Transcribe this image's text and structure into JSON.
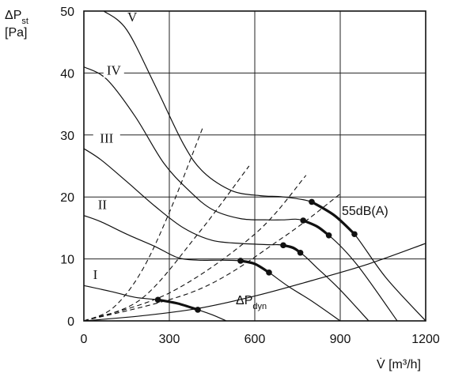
{
  "chart_data": {
    "type": "line",
    "y_axis_title": {
      "symbol": "ΔP",
      "subscript": "st",
      "unit": "[Pa]"
    },
    "x_axis_title": {
      "symbol": "V̇",
      "unit": "[m³/h]"
    },
    "xlim": [
      0,
      1200
    ],
    "ylim": [
      0,
      50
    ],
    "x_ticks": [
      "0",
      "300",
      "600",
      "900",
      "1200"
    ],
    "y_ticks": [
      "0",
      "10",
      "20",
      "30",
      "40",
      "50"
    ],
    "grid": true,
    "fan_curves": [
      {
        "name": "I",
        "points": [
          [
            0,
            5.7
          ],
          [
            100,
            4.7
          ],
          [
            180,
            3.8
          ],
          [
            260,
            3.4
          ],
          [
            330,
            2.8
          ],
          [
            400,
            1.8
          ],
          [
            450,
            1.0
          ],
          [
            500,
            0
          ]
        ]
      },
      {
        "name": "II",
        "points": [
          [
            0,
            17
          ],
          [
            60,
            16
          ],
          [
            150,
            14
          ],
          [
            250,
            12
          ],
          [
            330,
            10.2
          ],
          [
            400,
            9.8
          ],
          [
            480,
            9.8
          ],
          [
            550,
            9.7
          ],
          [
            600,
            9.2
          ],
          [
            650,
            7.8
          ],
          [
            720,
            5.5
          ],
          [
            800,
            3.2
          ],
          [
            900,
            0
          ]
        ]
      },
      {
        "name": "III",
        "points": [
          [
            0,
            27.8
          ],
          [
            60,
            26
          ],
          [
            150,
            22.5
          ],
          [
            250,
            18.5
          ],
          [
            350,
            15
          ],
          [
            450,
            13
          ],
          [
            550,
            12.5
          ],
          [
            650,
            12.3
          ],
          [
            700,
            12.2
          ],
          [
            760,
            11
          ],
          [
            820,
            8.5
          ],
          [
            900,
            5
          ],
          [
            1000,
            0
          ]
        ]
      },
      {
        "name": "IV",
        "points": [
          [
            0,
            41
          ],
          [
            80,
            39
          ],
          [
            180,
            33
          ],
          [
            280,
            25.5
          ],
          [
            370,
            21
          ],
          [
            450,
            18
          ],
          [
            550,
            16.5
          ],
          [
            650,
            16.3
          ],
          [
            700,
            16.3
          ],
          [
            770,
            16.2
          ],
          [
            860,
            13.8
          ],
          [
            960,
            9
          ],
          [
            1100,
            0
          ]
        ]
      },
      {
        "name": "V",
        "points": [
          [
            70,
            50
          ],
          [
            150,
            47
          ],
          [
            250,
            38
          ],
          [
            350,
            28.5
          ],
          [
            420,
            24
          ],
          [
            520,
            21
          ],
          [
            620,
            20.2
          ],
          [
            700,
            20
          ],
          [
            800,
            19.2
          ],
          [
            880,
            17
          ],
          [
            950,
            14
          ],
          [
            1060,
            7
          ],
          [
            1200,
            0
          ]
        ]
      }
    ],
    "system_curves": [
      {
        "points": [
          [
            0,
            0
          ],
          [
            100,
            2
          ],
          [
            200,
            7.8
          ],
          [
            300,
            17.5
          ],
          [
            420,
            31.5
          ]
        ]
      },
      {
        "points": [
          [
            0,
            0
          ],
          [
            200,
            3.5
          ],
          [
            400,
            14
          ],
          [
            580,
            25
          ]
        ]
      },
      {
        "points": [
          [
            0,
            0
          ],
          [
            300,
            4.5
          ],
          [
            600,
            14
          ],
          [
            780,
            23.5
          ]
        ]
      },
      {
        "points": [
          [
            0,
            0
          ],
          [
            400,
            5
          ],
          [
            700,
            13.5
          ],
          [
            900,
            20.5
          ]
        ]
      }
    ],
    "noise_segments": [
      {
        "points": [
          [
            260,
            3.4
          ],
          [
            330,
            2.8
          ],
          [
            400,
            1.8
          ]
        ]
      },
      {
        "points": [
          [
            550,
            9.7
          ],
          [
            600,
            9.2
          ],
          [
            650,
            7.8
          ]
        ]
      },
      {
        "points": [
          [
            700,
            12.2
          ],
          [
            735,
            11.8
          ],
          [
            760,
            11
          ]
        ]
      },
      {
        "points": [
          [
            770,
            16.2
          ],
          [
            820,
            15.2
          ],
          [
            860,
            13.8
          ]
        ]
      },
      {
        "points": [
          [
            800,
            19.2
          ],
          [
            880,
            17
          ],
          [
            950,
            14
          ]
        ]
      }
    ],
    "noise_label": "55dB(A)",
    "dynamic_pressure": {
      "symbol": "ΔP",
      "subscript": "dyn",
      "points": [
        [
          0,
          0
        ],
        [
          200,
          0.8
        ],
        [
          400,
          2
        ],
        [
          600,
          4
        ],
        [
          800,
          6.5
        ],
        [
          1000,
          9.2
        ],
        [
          1200,
          12.5
        ]
      ]
    },
    "series_labels": [
      {
        "text": "I",
        "at": [
          40,
          7
        ]
      },
      {
        "text": "II",
        "at": [
          65,
          18.3
        ]
      },
      {
        "text": "III",
        "at": [
          80,
          29
        ]
      },
      {
        "text": "IV",
        "at": [
          105,
          40
        ]
      },
      {
        "text": "V",
        "at": [
          170,
          48.6
        ]
      }
    ]
  }
}
